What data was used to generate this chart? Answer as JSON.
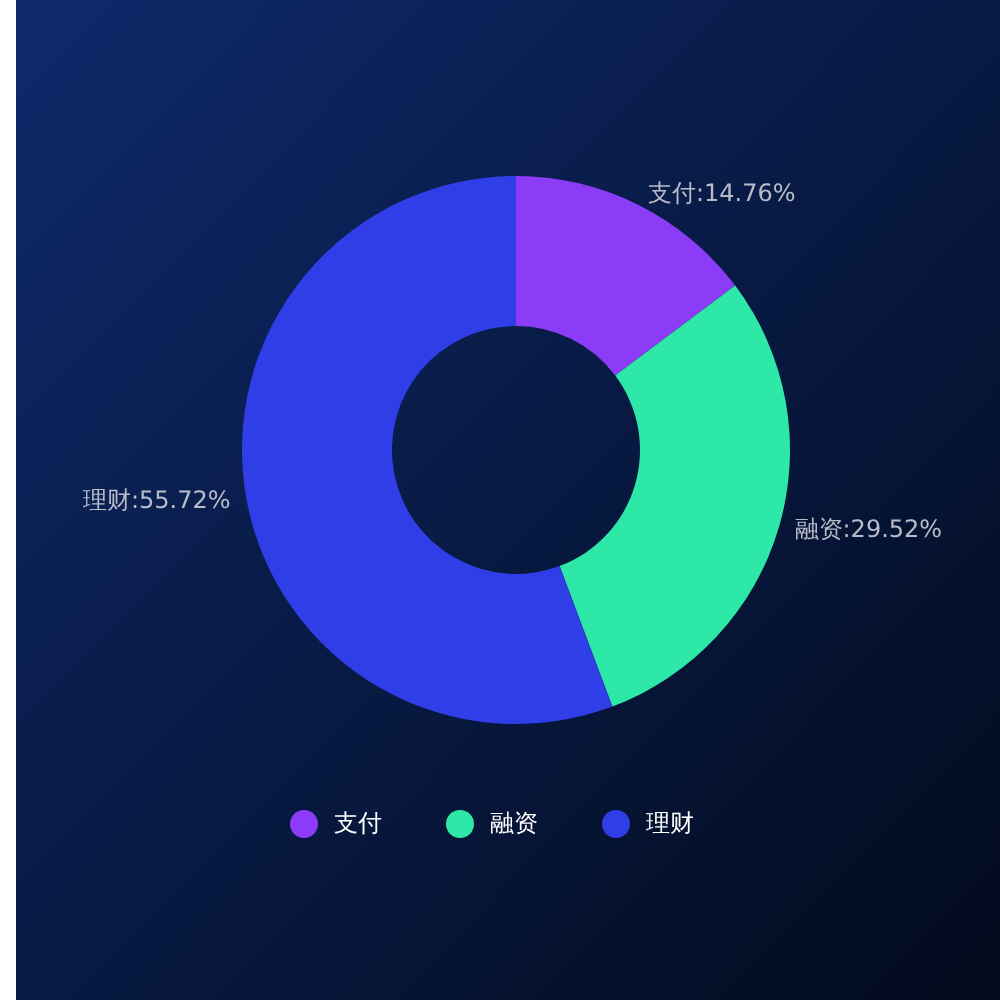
{
  "chart_data": {
    "type": "donut",
    "categories": [
      "支付",
      "融资",
      "理财"
    ],
    "values": [
      14.76,
      29.52,
      55.72
    ],
    "colors": [
      "#8b3cf7",
      "#2ee8a8",
      "#2f3ee6"
    ],
    "value_labels": [
      "支付:14.76%",
      "融资:29.52%",
      "理财:55.72%"
    ],
    "legend": "bottom"
  }
}
